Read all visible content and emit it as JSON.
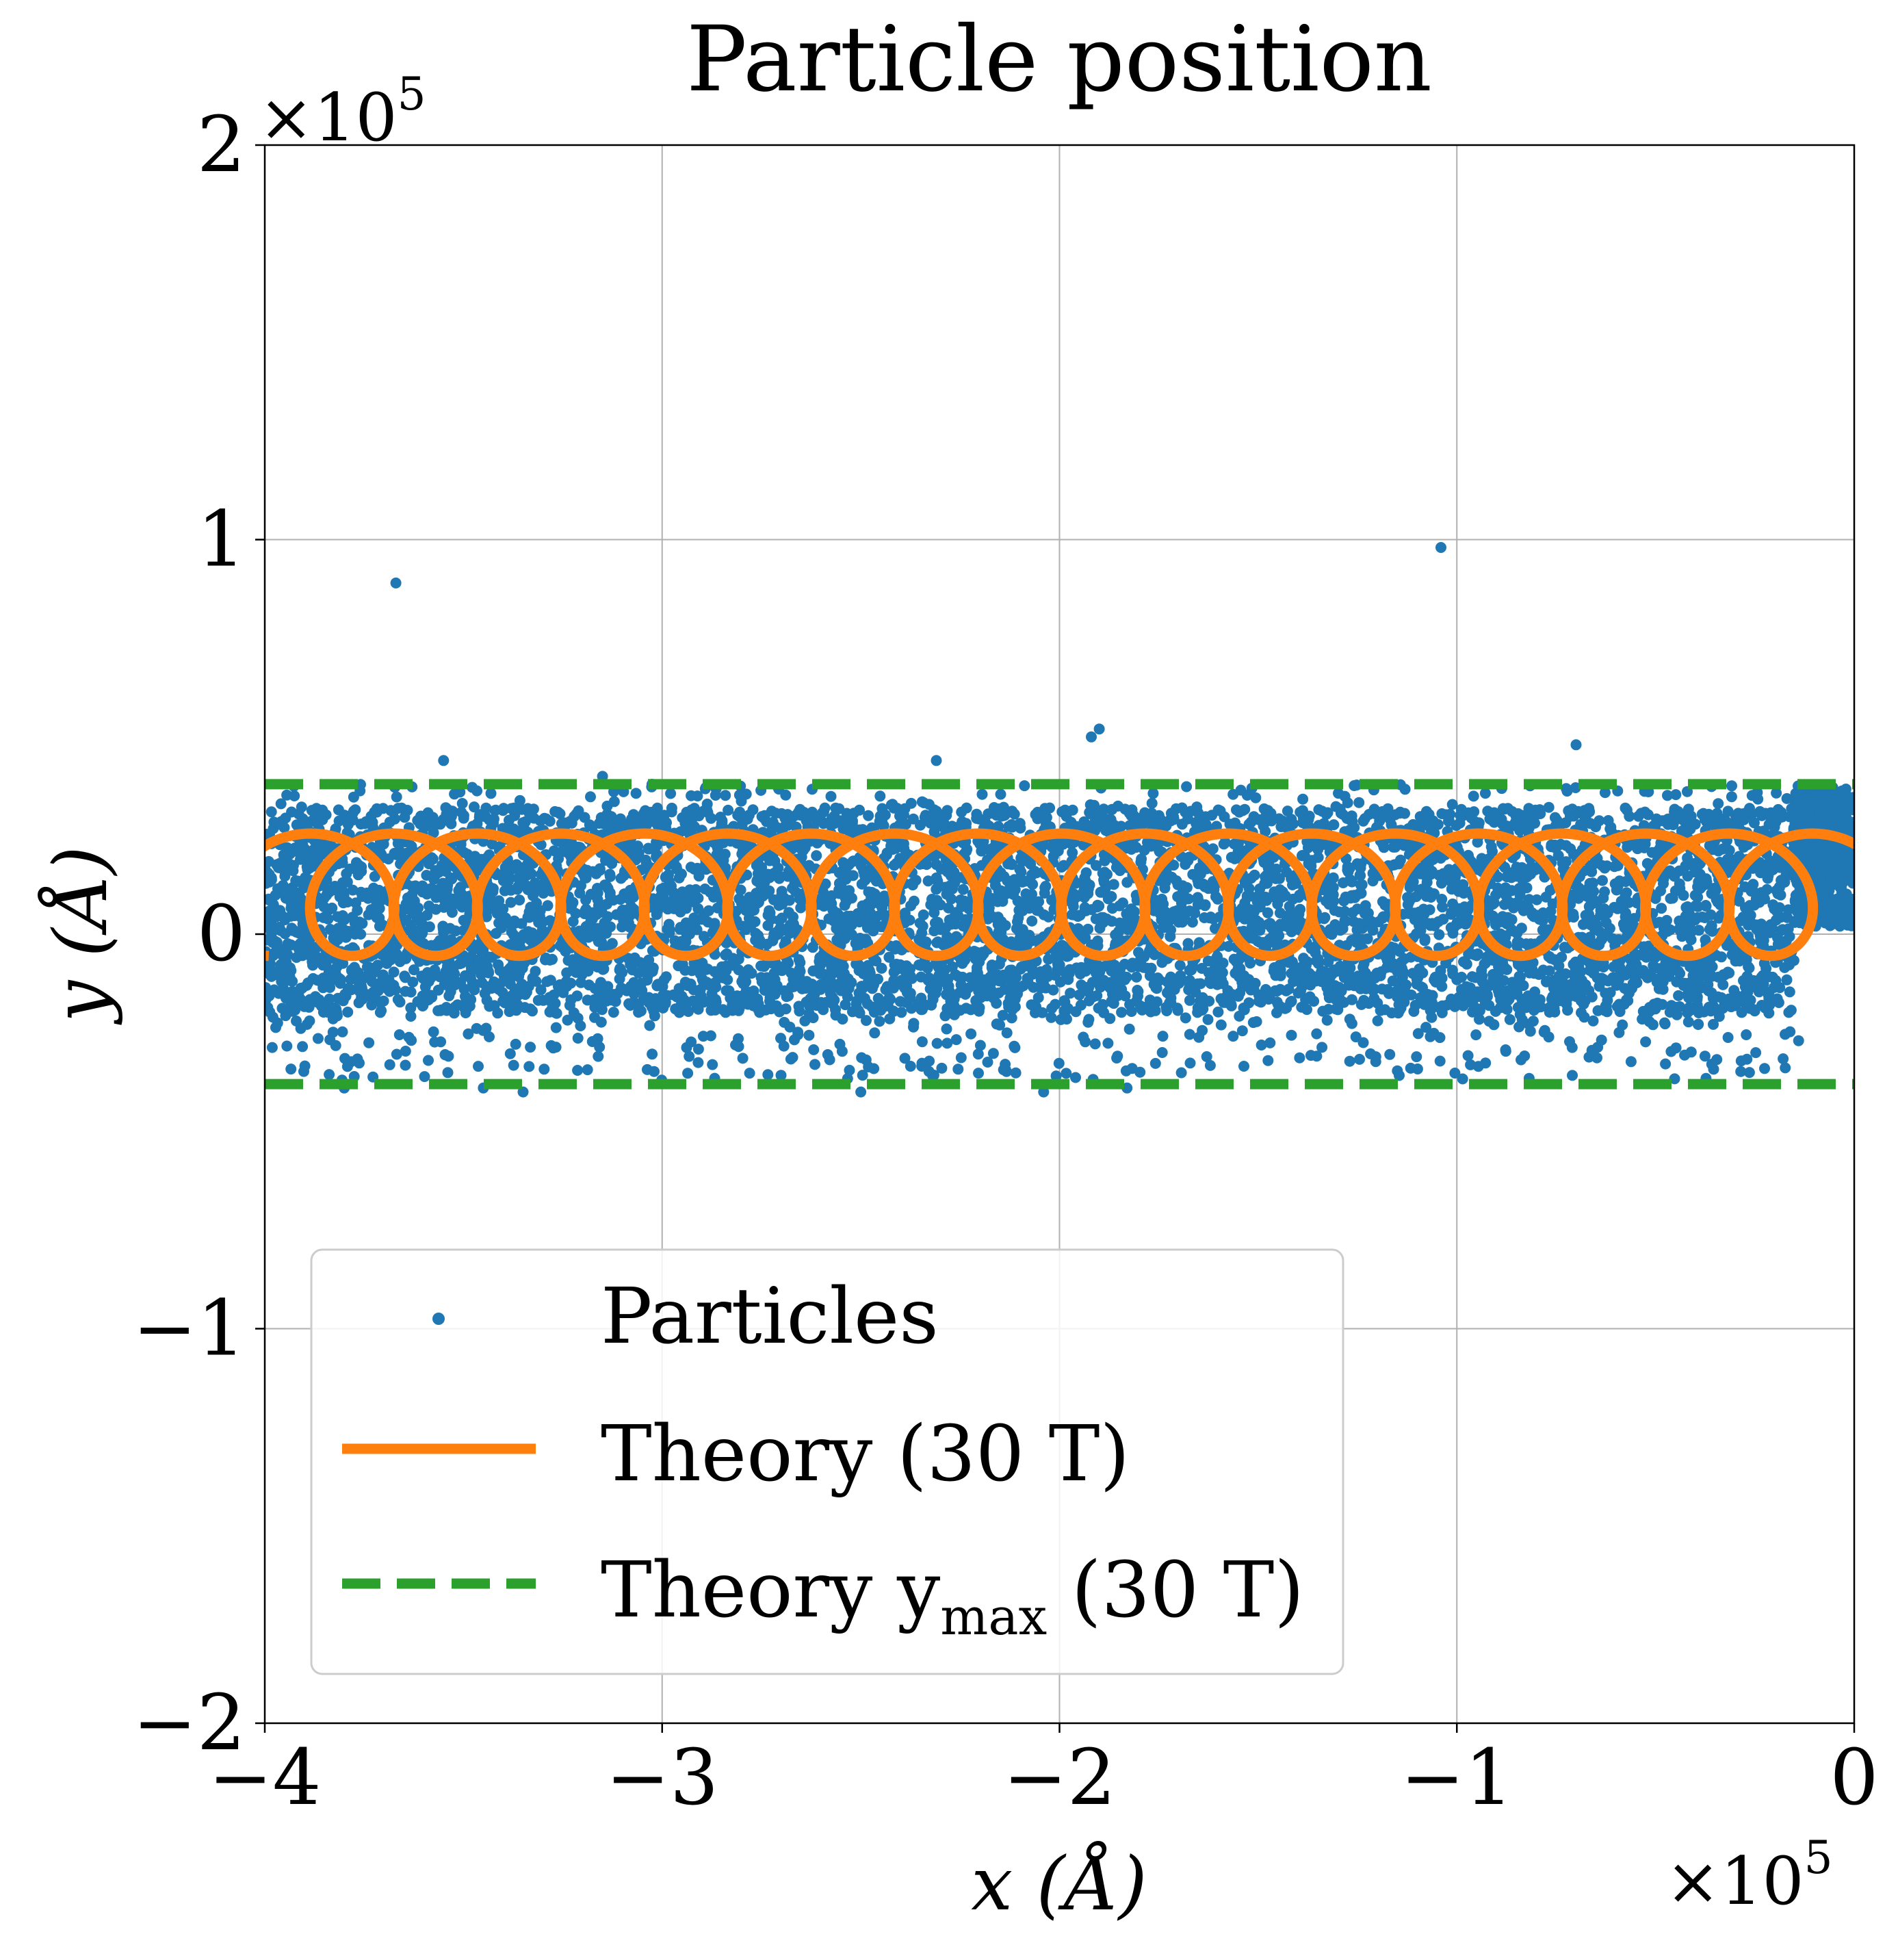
{
  "chart_data": {
    "type": "scatter",
    "title": "Particle position",
    "xlabel": "x (Å)",
    "ylabel": "y (Å)",
    "x_multiplier": "×10",
    "y_multiplier": "×10",
    "exponent": "5",
    "xlim": [
      -400000,
      0
    ],
    "ylim": [
      -200000,
      200000
    ],
    "xticks": [
      -400000,
      -300000,
      -200000,
      -100000,
      0
    ],
    "yticks": [
      -200000,
      -100000,
      0,
      100000,
      200000
    ],
    "xtick_labels": [
      "−4",
      "−3",
      "−2",
      "−1",
      "0"
    ],
    "ytick_labels": [
      "−2",
      "−1",
      "0",
      "1",
      "2"
    ],
    "grid": true,
    "legend_position": "lower-left",
    "series": [
      {
        "name": "Particles",
        "kind": "points",
        "color": "#1f77b4",
        "band": {
          "x_start": -400000,
          "x_end": -15000,
          "y_min": -37000,
          "y_max": 38000,
          "dense_y_min": -20000,
          "dense_y_max": 32000
        },
        "outliers": [
          {
            "x": -367000,
            "y": 89000
          },
          {
            "x": -104000,
            "y": 98000
          },
          {
            "x": -192000,
            "y": 50000
          },
          {
            "x": -190000,
            "y": 52000
          },
          {
            "x": -70000,
            "y": 48000
          },
          {
            "x": -355000,
            "y": 44000
          },
          {
            "x": -315000,
            "y": 40000
          },
          {
            "x": -231000,
            "y": 44000
          },
          {
            "x": -14000,
            "y": -27000
          },
          {
            "x": -204000,
            "y": -40000
          },
          {
            "x": -380000,
            "y": -39000
          },
          {
            "x": -345000,
            "y": -39000
          },
          {
            "x": -335000,
            "y": -40000
          },
          {
            "x": -250000,
            "y": -40000
          },
          {
            "x": -183000,
            "y": -39000
          },
          {
            "x": -5000,
            "y": 5000
          }
        ]
      },
      {
        "name": "Theory (30 T)",
        "kind": "trochoid",
        "color": "#ff7f0e",
        "parameters": {
          "center_y": 10000,
          "radius": 15500,
          "loop_spacing": 21000,
          "loop_count": 19,
          "x_end": 0
        }
      },
      {
        "name": "Theory y",
        "name_subscript": "max",
        "name_suffix": " (30 T)",
        "kind": "hlines",
        "color": "#2ca02c",
        "dashed": true,
        "values": [
          38000,
          -38000
        ]
      }
    ]
  }
}
